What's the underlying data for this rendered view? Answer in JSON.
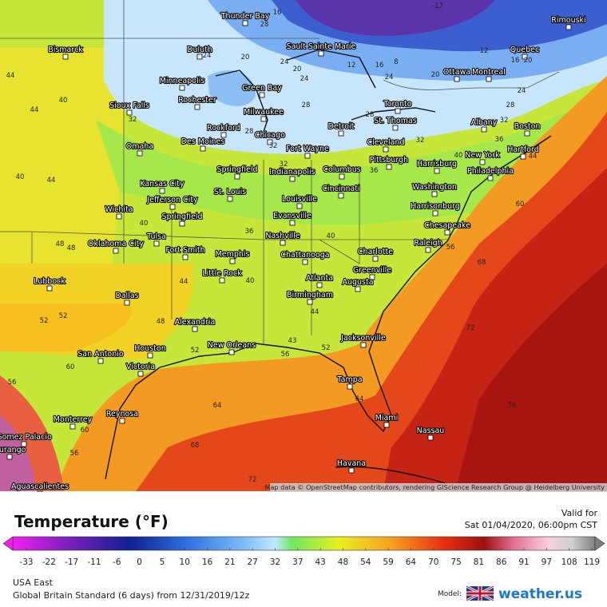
{
  "map": {
    "cities": [
      "Thunder Bay",
      "Rimouski",
      "Bismarck",
      "Duluth",
      "Sault Sainte Marie",
      "Quebec",
      "Ottawa",
      "Montreal",
      "Minneapolis",
      "Green Bay",
      "Rochester",
      "Toronto",
      "Sioux Falls",
      "Milwaukee",
      "Albany",
      "Boston",
      "Rockford",
      "Detroit",
      "St. Thomas",
      "Chicago",
      "Des Moines",
      "Cleveland",
      "Fort Wayne",
      "Omaha",
      "New York",
      "Hartford",
      "Harrisburg",
      "Pittsburgh",
      "Springfield",
      "Indianapolis",
      "Columbus",
      "Philadelphia",
      "Kansas City",
      "Cincinnati",
      "Washington",
      "St. Louis",
      "Jefferson City",
      "Louisville",
      "Harrisonburg",
      "Wichita",
      "Springfield",
      "Evansville",
      "Chesapeake",
      "Tulsa",
      "Nashville",
      "Oklahoma City",
      "Raleigh",
      "Fort Smith",
      "Memphis",
      "Charlotte",
      "Chattanooga",
      "Greenville",
      "Little Rock",
      "Atlanta",
      "Augusta",
      "Lubbock",
      "Birmingham",
      "Dallas",
      "Alexandria",
      "Jacksonville",
      "New Orleans",
      "Houston",
      "San Antonio",
      "Victoria",
      "Tampa",
      "Monterrey",
      "Reynosa",
      "Miami",
      "Nassau",
      "Gomez Palacio",
      "Durango",
      "Havana",
      "Aguascalientes"
    ],
    "contour_labels": [
      -17,
      16,
      28,
      24,
      20,
      24,
      20,
      24,
      12,
      16,
      8,
      24,
      20,
      12,
      16,
      20,
      24,
      28,
      32,
      28,
      28,
      32,
      28,
      32,
      32,
      40,
      36,
      44,
      36,
      32,
      44,
      40,
      44,
      40,
      44,
      48,
      48,
      40,
      36,
      40,
      56,
      60,
      68,
      44,
      40,
      52,
      52,
      48,
      44,
      52,
      43,
      52,
      56,
      60,
      56,
      60,
      56,
      64,
      68,
      64,
      72,
      72,
      76
    ],
    "attribution": "Map data © OpenStreetMap contributors, rendering GIScience Research Group @ Heidelberg University"
  },
  "legend": {
    "title": "Temperature (°F)",
    "valid_label": "Valid for",
    "valid_time": "Sat 01/04/2020, 06:00pm CST",
    "scale": [
      -33,
      -22,
      -17,
      -11,
      -6,
      0,
      5,
      10,
      16,
      21,
      27,
      32,
      37,
      43,
      48,
      54,
      59,
      64,
      70,
      75,
      81,
      86,
      91,
      97,
      108,
      119
    ]
  },
  "footer": {
    "region": "USA East",
    "model_run": "Global Britain Standard (6 days) from  12/31/2019/12z",
    "model_label": "Model:",
    "brand": "weather.us"
  }
}
